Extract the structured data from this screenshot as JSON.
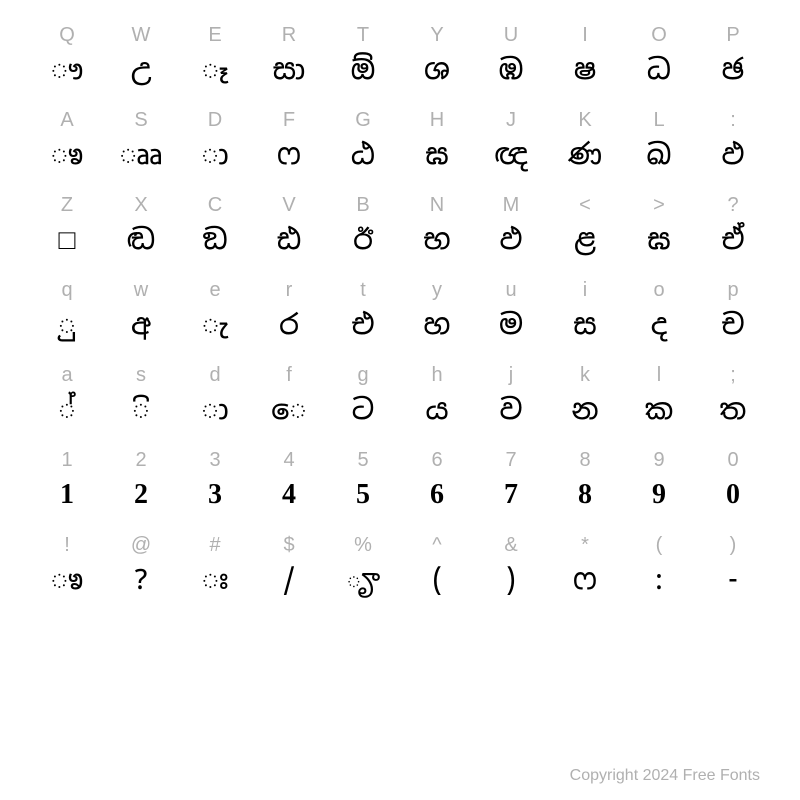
{
  "rows": [
    {
      "keys": [
        "Q",
        "W",
        "E",
        "R",
        "T",
        "Y",
        "U",
        "I",
        "O",
        "P"
      ],
      "glyphs": [
        "ෟ",
        "උ",
        "ෑ",
        "සා",
        "ඕ",
        "ශ",
        "ඹ",
        "ෂ",
        "ධ",
        "ඡ"
      ]
    },
    {
      "keys": [
        "A",
        "S",
        "D",
        "F",
        "G",
        "H",
        "J",
        "K",
        "L",
        ":"
      ],
      "glyphs": [
        "ෳ",
        "ෲ",
        "ා",
        "ෆ",
        "ඨ",
        "ඝ",
        "ඥ",
        "ණ",
        "ඛ",
        "ඵ"
      ]
    },
    {
      "keys": [
        "Z",
        "X",
        "C",
        "V",
        "B",
        "N",
        "M",
        "<",
        ">",
        "?"
      ],
      "glyphs": [
        "□",
        "ඬ",
        "ඞ",
        "ඪ",
        "ඊ",
        "භ",
        "ඵ",
        "ළ",
        "ඝ",
        "ඒ"
      ]
    },
    {
      "keys": [
        "q",
        "w",
        "e",
        "r",
        "t",
        "y",
        "u",
        "i",
        "o",
        "p"
      ],
      "glyphs": [
        "ු",
        "අ",
        "ැ",
        "ර",
        "එ",
        "හ",
        "ම",
        "ස",
        "ද",
        "ච"
      ]
    },
    {
      "keys": [
        "a",
        "s",
        "d",
        "f",
        "g",
        "h",
        "j",
        "k",
        "l",
        ";"
      ],
      "glyphs": [
        "්",
        "ි",
        "ා",
        "ෙ",
        "ට",
        "ය",
        "ව",
        "න",
        "ක",
        "ත"
      ]
    },
    {
      "keys": [
        "1",
        "2",
        "3",
        "4",
        "5",
        "6",
        "7",
        "8",
        "9",
        "0"
      ],
      "glyphs": [
        "1",
        "2",
        "3",
        "4",
        "5",
        "6",
        "7",
        "8",
        "9",
        "0"
      ],
      "digitRow": true
    },
    {
      "keys": [
        "!",
        "@",
        "#",
        "$",
        "%",
        "^",
        "&",
        "*",
        "(",
        ")"
      ],
      "glyphs": [
        "ෳ",
        "?",
        "ඃ",
        "/",
        "ౄ",
        "(",
        ")",
        "ෆ",
        ":",
        "-"
      ]
    }
  ],
  "footer": "Copyright 2024 Free Fonts",
  "colors": {
    "label": "#b0b0b0",
    "glyph": "#000000",
    "bg": "#ffffff"
  }
}
